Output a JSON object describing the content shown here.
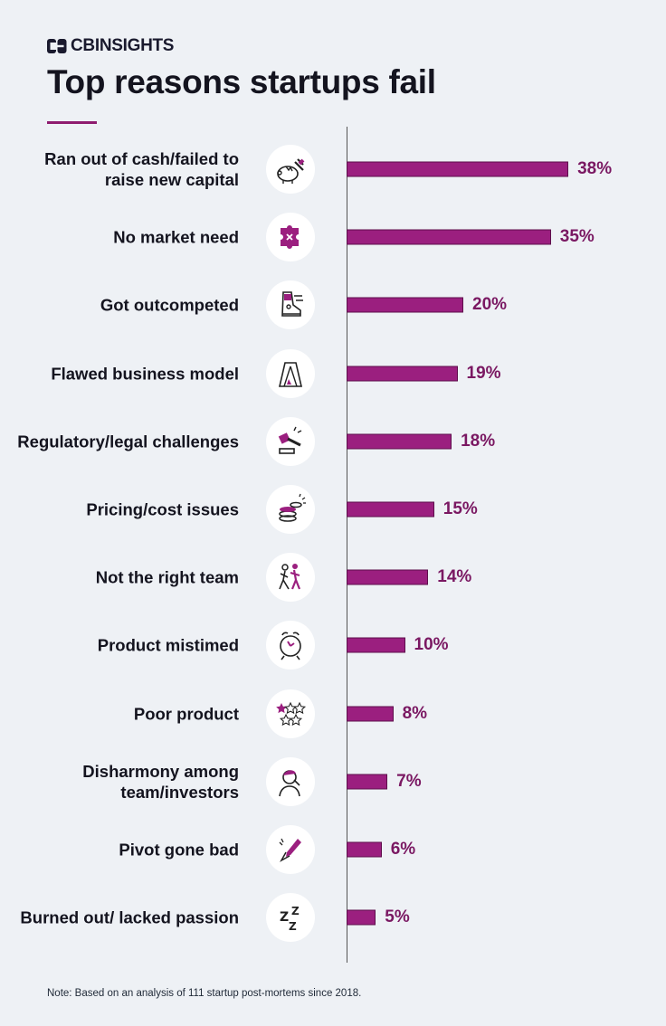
{
  "brand": {
    "name": "CBINSIGHTS"
  },
  "title": "Top reasons startups fail",
  "note": "Note: Based on an analysis of 111 startup post-mortems since 2018.",
  "colors": {
    "bar": "#9b1f7f",
    "value": "#7a1862",
    "rule": "#8e1c6f"
  },
  "chart_data": {
    "type": "bar",
    "orientation": "horizontal",
    "categories": [
      "Ran out of cash/failed to raise new capital",
      "No market need",
      "Got outcompeted",
      "Flawed business model",
      "Regulatory/legal challenges",
      "Pricing/cost issues",
      "Not the right team",
      "Product mistimed",
      "Poor product",
      "Disharmony among team/investors",
      "Pivot gone bad",
      "Burned out/ lacked passion"
    ],
    "values": [
      38,
      35,
      20,
      19,
      18,
      15,
      14,
      10,
      8,
      7,
      6,
      5
    ],
    "value_labels": [
      "38%",
      "35%",
      "20%",
      "19%",
      "18%",
      "15%",
      "14%",
      "10%",
      "8%",
      "7%",
      "6%",
      "5%"
    ],
    "icons": [
      "broken-piggy-bank-icon",
      "puzzle-piece-icon",
      "running-shoe-icon",
      "house-of-cards-icon",
      "gavel-icon",
      "coin-stack-icon",
      "people-collision-icon",
      "alarm-clock-icon",
      "star-rating-icon",
      "frustrated-person-icon",
      "broken-pencil-icon",
      "sleep-zzz-icon"
    ],
    "xlim": [
      0,
      40
    ],
    "title": "Top reasons startups fail",
    "xlabel": "",
    "ylabel": "",
    "grid": false,
    "legend": "none"
  }
}
